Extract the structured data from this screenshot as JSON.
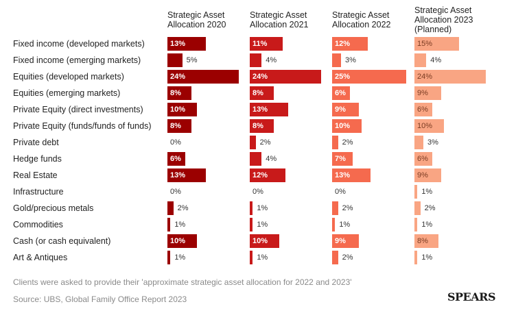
{
  "chart_data": {
    "type": "bar",
    "series": [
      {
        "name": "Strategic Asset\nAllocation 2020",
        "color": "#9b0000",
        "values": [
          13,
          5,
          24,
          8,
          10,
          8,
          0,
          6,
          13,
          0,
          2,
          1,
          10,
          1
        ]
      },
      {
        "name": "Strategic Asset\nAllocation 2021",
        "color": "#c81a1a",
        "values": [
          11,
          4,
          24,
          8,
          13,
          8,
          2,
          4,
          12,
          0,
          1,
          1,
          10,
          1
        ]
      },
      {
        "name": "Strategic Asset\nAllocation 2022",
        "color": "#f56a4e",
        "values": [
          12,
          3,
          25,
          6,
          9,
          10,
          2,
          7,
          13,
          0,
          2,
          1,
          9,
          2
        ]
      },
      {
        "name": "Strategic Asset\nAllocation 2023\n(Planned)",
        "color": "#f9a583",
        "values": [
          15,
          4,
          24,
          9,
          6,
          10,
          3,
          6,
          9,
          1,
          2,
          1,
          8,
          1
        ]
      }
    ],
    "categories": [
      "Fixed income (developed markets)",
      "Fixed income (emerging markets)",
      "Equities (developed markets)",
      "Equities (emerging markets)",
      "Private Equity (direct investments)",
      "Private Equity (funds/funds of funds)",
      "Private debt",
      "Hedge funds",
      "Real Estate",
      "Infrastructure",
      "Gold/precious metals",
      "Commodities",
      "Cash (or cash equivalent)",
      "Art & Antiques"
    ],
    "value_suffix": "%",
    "xlim": [
      0,
      25
    ]
  },
  "footnotes": {
    "note": "Clients were asked to provide their 'approximate strategic asset allocation for 2022 and 2023'",
    "source": "Source: UBS, Global Family Office Report 2023"
  },
  "logo_text": "SPEARS"
}
